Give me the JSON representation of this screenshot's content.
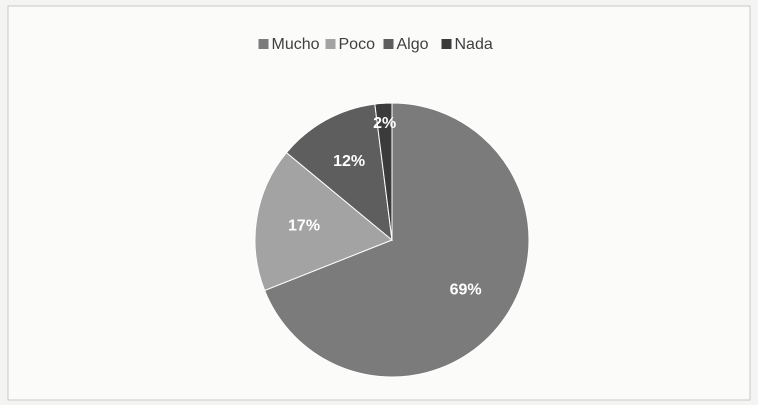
{
  "chart_data": {
    "type": "pie",
    "categories": [
      "Mucho",
      "Poco",
      "Algo",
      "Nada"
    ],
    "values": [
      69,
      17,
      12,
      2
    ],
    "value_labels": [
      "69%",
      "17%",
      "12%",
      "2%"
    ],
    "colors": [
      "#7b7b7b",
      "#a3a3a3",
      "#5e5e5e",
      "#3b3b3b"
    ],
    "legend": "top"
  }
}
